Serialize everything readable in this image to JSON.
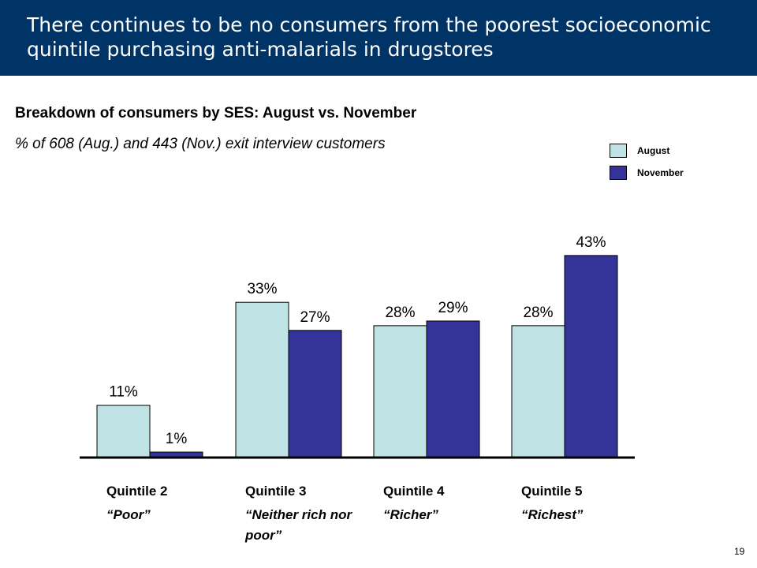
{
  "slide": {
    "title": "There continues to be no consumers from the poorest socioeconomic quintile purchasing anti-malarials in drugstores",
    "subtitle": "Breakdown of consumers by SES: August vs. November",
    "note": "% of 608 (Aug.) and 443 (Nov.) exit interview customers",
    "page_number": "19"
  },
  "colors": {
    "title_bar": "#003366",
    "august": "#bfe3e5",
    "november": "#333399",
    "axis": "#000000"
  },
  "chart_data": {
    "type": "bar",
    "categories": [
      "Quintile 2",
      "Quintile 3",
      "Quintile 4",
      "Quintile 5"
    ],
    "category_sublabels": [
      "“Poor”",
      "“Neither rich nor poor”",
      "“Richer”",
      "“Richest”"
    ],
    "series": [
      {
        "name": "August",
        "values": [
          11,
          33,
          28,
          28
        ],
        "labels": [
          "11%",
          "33%",
          "28%",
          "28%"
        ],
        "color": "#bfe3e5"
      },
      {
        "name": "November",
        "values": [
          1,
          27,
          29,
          43
        ],
        "labels": [
          "1%",
          "27%",
          "29%",
          "43%"
        ],
        "color": "#333399"
      }
    ],
    "ylim": [
      0,
      45
    ],
    "grid": false,
    "legend_position": "top-right",
    "title": "",
    "xlabel": "",
    "ylabel": ""
  }
}
